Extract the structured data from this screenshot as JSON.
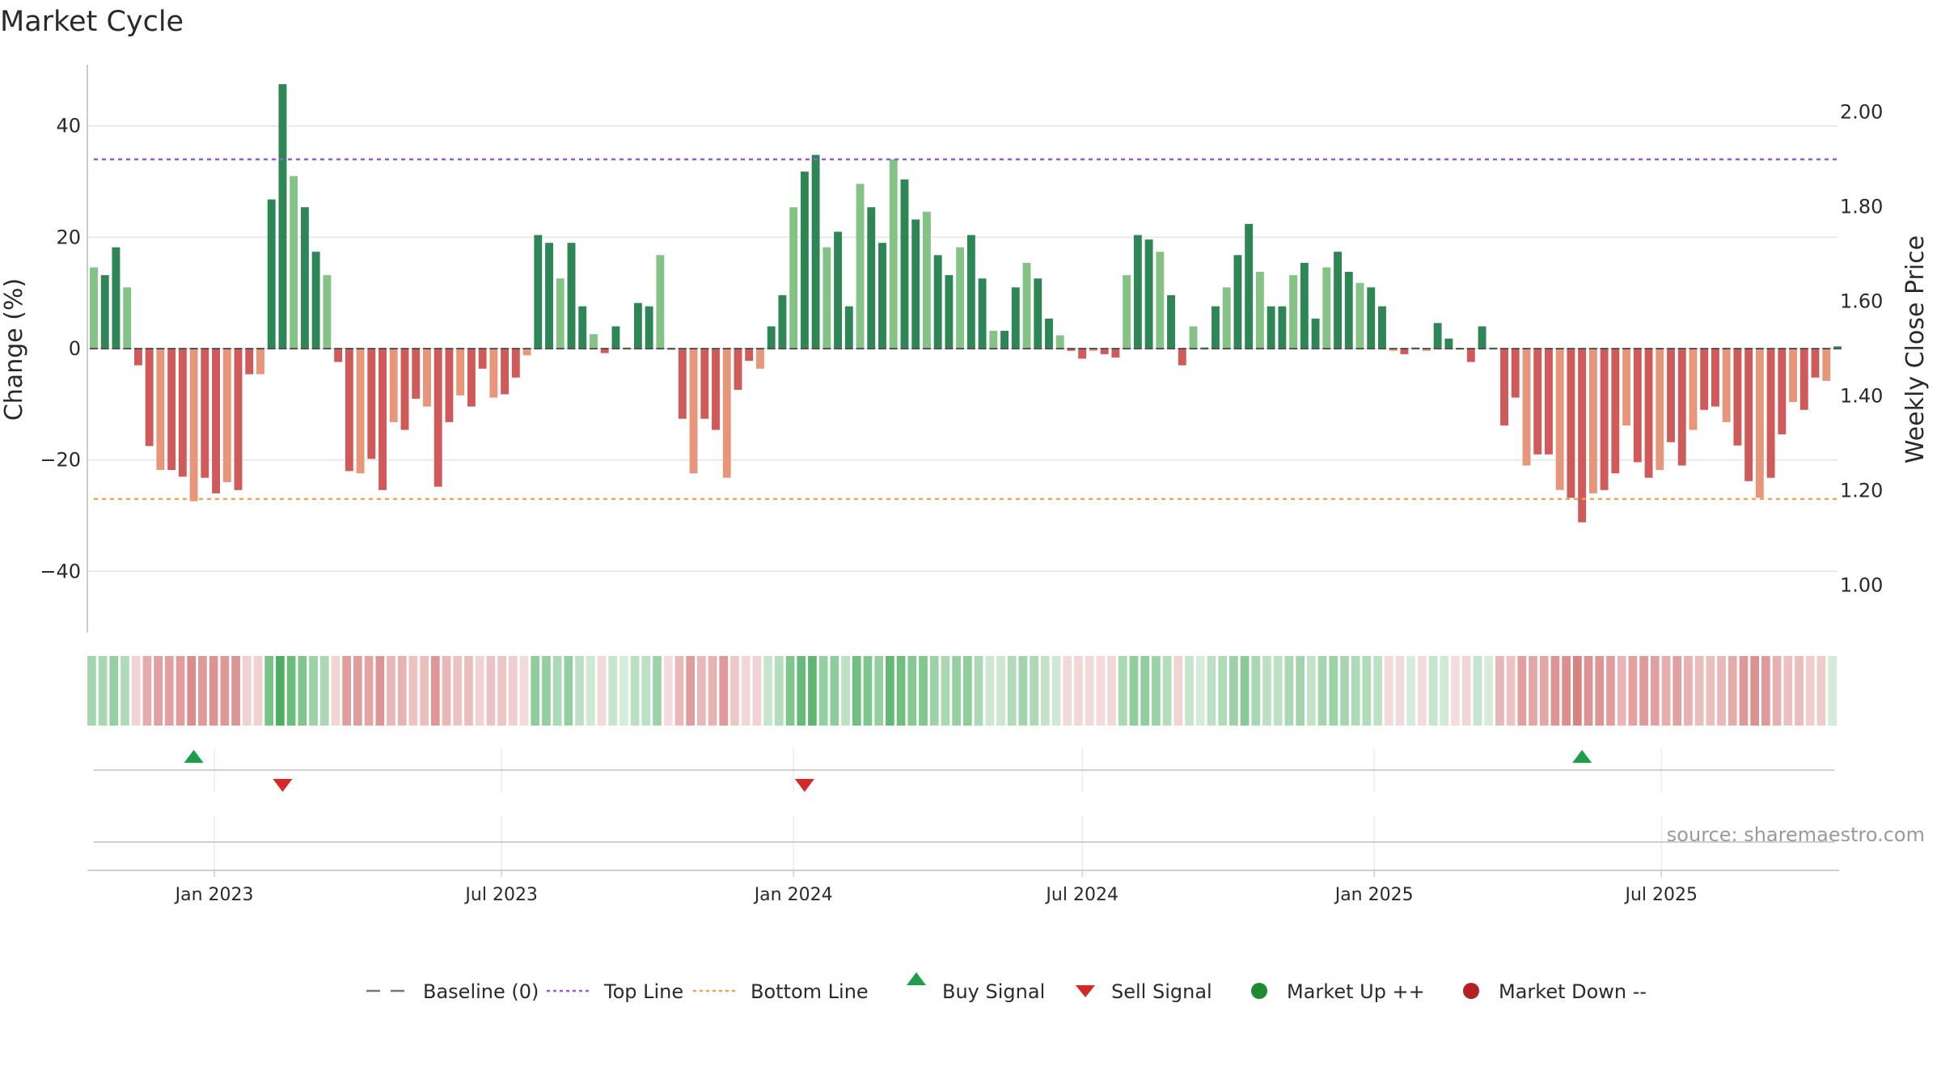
{
  "chart_data": {
    "type": "bar",
    "title": "Market Cycle",
    "ylabel": "Change (%)",
    "y2label": "Weekly Close Price",
    "ylim": [
      -51,
      51
    ],
    "y_ticks": [
      40,
      20,
      0,
      -20,
      -40
    ],
    "y_tick_labels": [
      "40",
      "20",
      "0",
      "−20",
      "−40"
    ],
    "y2lim": [
      0.9,
      2.1
    ],
    "y2_ticks": [
      2.0,
      1.8,
      1.6,
      1.4,
      1.2,
      1.0
    ],
    "y2_tick_labels": [
      "2.00",
      "1.80",
      "1.60",
      "1.40",
      "1.20",
      "1.00"
    ],
    "start_date": "2022-10-17",
    "end_date": "2025-10-20",
    "x_ticks": [
      {
        "date": "2023-01-01",
        "label": "Jan 2023"
      },
      {
        "date": "2023-07-01",
        "label": "Jul 2023"
      },
      {
        "date": "2024-01-01",
        "label": "Jan 2024"
      },
      {
        "date": "2024-07-01",
        "label": "Jul 2024"
      },
      {
        "date": "2025-01-01",
        "label": "Jan 2025"
      },
      {
        "date": "2025-07-01",
        "label": "Jul 2025"
      }
    ],
    "top_line": 34,
    "bottom_line": -27,
    "grid": true,
    "legend_position": "bottom",
    "weeks": [
      {
        "date": "2022-10-17",
        "value": 14.6
      },
      {
        "date": "2022-10-24",
        "value": 13.2
      },
      {
        "date": "2022-10-31",
        "value": 18.2
      },
      {
        "date": "2022-11-07",
        "value": 11.0
      },
      {
        "date": "2022-11-14",
        "value": -3.0
      },
      {
        "date": "2022-11-21",
        "value": -17.5
      },
      {
        "date": "2022-11-28",
        "value": -21.8
      },
      {
        "date": "2022-12-05",
        "value": -21.8
      },
      {
        "date": "2022-12-12",
        "value": -23.0
      },
      {
        "date": "2022-12-19",
        "value": -27.4
      },
      {
        "date": "2022-12-26",
        "value": -23.2
      },
      {
        "date": "2023-01-02",
        "value": -26.0
      },
      {
        "date": "2023-01-09",
        "value": -24.0
      },
      {
        "date": "2023-01-16",
        "value": -25.4
      },
      {
        "date": "2023-01-23",
        "value": -4.6
      },
      {
        "date": "2023-01-30",
        "value": -4.6
      },
      {
        "date": "2023-02-06",
        "value": 26.8
      },
      {
        "date": "2023-02-13",
        "value": 47.5
      },
      {
        "date": "2023-02-20",
        "value": 31.0
      },
      {
        "date": "2023-02-27",
        "value": 25.4
      },
      {
        "date": "2023-03-06",
        "value": 17.4
      },
      {
        "date": "2023-03-13",
        "value": 13.2
      },
      {
        "date": "2023-03-20",
        "value": -2.4
      },
      {
        "date": "2023-03-27",
        "value": -22.0
      },
      {
        "date": "2023-04-03",
        "value": -22.4
      },
      {
        "date": "2023-04-10",
        "value": -19.8
      },
      {
        "date": "2023-04-17",
        "value": -25.4
      },
      {
        "date": "2023-04-24",
        "value": -13.2
      },
      {
        "date": "2023-05-01",
        "value": -14.6
      },
      {
        "date": "2023-05-08",
        "value": -9.0
      },
      {
        "date": "2023-05-15",
        "value": -10.4
      },
      {
        "date": "2023-05-22",
        "value": -24.8
      },
      {
        "date": "2023-05-29",
        "value": -13.2
      },
      {
        "date": "2023-06-05",
        "value": -8.4
      },
      {
        "date": "2023-06-12",
        "value": -10.4
      },
      {
        "date": "2023-06-19",
        "value": -3.6
      },
      {
        "date": "2023-06-26",
        "value": -8.8
      },
      {
        "date": "2023-07-03",
        "value": -8.2
      },
      {
        "date": "2023-07-10",
        "value": -5.2
      },
      {
        "date": "2023-07-17",
        "value": -1.2
      },
      {
        "date": "2023-07-24",
        "value": 20.4
      },
      {
        "date": "2023-07-31",
        "value": 19.0
      },
      {
        "date": "2023-08-07",
        "value": 12.6
      },
      {
        "date": "2023-08-14",
        "value": 19.0
      },
      {
        "date": "2023-08-21",
        "value": 7.6
      },
      {
        "date": "2023-08-28",
        "value": 2.6
      },
      {
        "date": "2023-09-04",
        "value": -0.8
      },
      {
        "date": "2023-09-11",
        "value": 4.0
      },
      {
        "date": "2023-09-18",
        "value": 0.2
      },
      {
        "date": "2023-09-25",
        "value": 8.2
      },
      {
        "date": "2023-10-02",
        "value": 7.6
      },
      {
        "date": "2023-10-09",
        "value": 16.8
      },
      {
        "date": "2023-10-16",
        "value": -0.2
      },
      {
        "date": "2023-10-23",
        "value": -12.6
      },
      {
        "date": "2023-10-30",
        "value": -22.4
      },
      {
        "date": "2023-11-06",
        "value": -12.6
      },
      {
        "date": "2023-11-13",
        "value": -14.6
      },
      {
        "date": "2023-11-20",
        "value": -23.2
      },
      {
        "date": "2023-11-27",
        "value": -7.4
      },
      {
        "date": "2023-12-04",
        "value": -2.2
      },
      {
        "date": "2023-12-11",
        "value": -3.6
      },
      {
        "date": "2023-12-18",
        "value": 4.0
      },
      {
        "date": "2023-12-25",
        "value": 9.6
      },
      {
        "date": "2024-01-01",
        "value": 25.4
      },
      {
        "date": "2024-01-08",
        "value": 31.8
      },
      {
        "date": "2024-01-15",
        "value": 34.8
      },
      {
        "date": "2024-01-22",
        "value": 18.2
      },
      {
        "date": "2024-01-29",
        "value": 21.0
      },
      {
        "date": "2024-02-05",
        "value": 7.6
      },
      {
        "date": "2024-02-12",
        "value": 29.6
      },
      {
        "date": "2024-02-19",
        "value": 25.4
      },
      {
        "date": "2024-02-26",
        "value": 19.0
      },
      {
        "date": "2024-03-04",
        "value": 34.0
      },
      {
        "date": "2024-03-11",
        "value": 30.4
      },
      {
        "date": "2024-03-18",
        "value": 23.2
      },
      {
        "date": "2024-03-25",
        "value": 24.6
      },
      {
        "date": "2024-04-01",
        "value": 16.8
      },
      {
        "date": "2024-04-08",
        "value": 13.2
      },
      {
        "date": "2024-04-15",
        "value": 18.2
      },
      {
        "date": "2024-04-22",
        "value": 20.4
      },
      {
        "date": "2024-04-29",
        "value": 12.6
      },
      {
        "date": "2024-05-06",
        "value": 3.2
      },
      {
        "date": "2024-05-13",
        "value": 3.2
      },
      {
        "date": "2024-05-20",
        "value": 11.0
      },
      {
        "date": "2024-05-27",
        "value": 15.4
      },
      {
        "date": "2024-06-03",
        "value": 12.6
      },
      {
        "date": "2024-06-10",
        "value": 5.4
      },
      {
        "date": "2024-06-17",
        "value": 2.4
      },
      {
        "date": "2024-06-24",
        "value": -0.4
      },
      {
        "date": "2024-07-01",
        "value": -1.8
      },
      {
        "date": "2024-07-08",
        "value": -0.4
      },
      {
        "date": "2024-07-15",
        "value": -1.0
      },
      {
        "date": "2024-07-22",
        "value": -1.6
      },
      {
        "date": "2024-07-29",
        "value": 13.2
      },
      {
        "date": "2024-08-05",
        "value": 20.4
      },
      {
        "date": "2024-08-12",
        "value": 19.6
      },
      {
        "date": "2024-08-19",
        "value": 17.4
      },
      {
        "date": "2024-08-26",
        "value": 9.6
      },
      {
        "date": "2024-09-02",
        "value": -3.0
      },
      {
        "date": "2024-09-09",
        "value": 4.0
      },
      {
        "date": "2024-09-16",
        "value": 0.2
      },
      {
        "date": "2024-09-23",
        "value": 7.6
      },
      {
        "date": "2024-09-30",
        "value": 11.0
      },
      {
        "date": "2024-10-07",
        "value": 16.8
      },
      {
        "date": "2024-10-14",
        "value": 22.4
      },
      {
        "date": "2024-10-21",
        "value": 13.8
      },
      {
        "date": "2024-10-28",
        "value": 7.6
      },
      {
        "date": "2024-11-04",
        "value": 7.6
      },
      {
        "date": "2024-11-11",
        "value": 13.2
      },
      {
        "date": "2024-11-18",
        "value": 15.4
      },
      {
        "date": "2024-11-25",
        "value": 5.4
      },
      {
        "date": "2024-12-02",
        "value": 14.6
      },
      {
        "date": "2024-12-09",
        "value": 17.4
      },
      {
        "date": "2024-12-16",
        "value": 13.8
      },
      {
        "date": "2024-12-23",
        "value": 11.8
      },
      {
        "date": "2024-12-30",
        "value": 11.0
      },
      {
        "date": "2025-01-06",
        "value": 7.6
      },
      {
        "date": "2025-01-13",
        "value": -0.4
      },
      {
        "date": "2025-01-20",
        "value": -1.0
      },
      {
        "date": "2025-01-27",
        "value": 0.2
      },
      {
        "date": "2025-02-03",
        "value": -0.4
      },
      {
        "date": "2025-02-10",
        "value": 4.6
      },
      {
        "date": "2025-02-17",
        "value": 1.8
      },
      {
        "date": "2025-02-24",
        "value": -0.2
      },
      {
        "date": "2025-03-03",
        "value": -2.4
      },
      {
        "date": "2025-03-10",
        "value": 4.0
      },
      {
        "date": "2025-03-17",
        "value": 0.2
      },
      {
        "date": "2025-03-24",
        "value": -13.8
      },
      {
        "date": "2025-03-31",
        "value": -8.8
      },
      {
        "date": "2025-04-07",
        "value": -21.0
      },
      {
        "date": "2025-04-14",
        "value": -19.0
      },
      {
        "date": "2025-04-21",
        "value": -19.0
      },
      {
        "date": "2025-04-28",
        "value": -25.4
      },
      {
        "date": "2025-05-05",
        "value": -26.8
      },
      {
        "date": "2025-05-12",
        "value": -31.2
      },
      {
        "date": "2025-05-19",
        "value": -26.0
      },
      {
        "date": "2025-05-26",
        "value": -25.4
      },
      {
        "date": "2025-06-02",
        "value": -22.4
      },
      {
        "date": "2025-06-09",
        "value": -13.8
      },
      {
        "date": "2025-06-16",
        "value": -20.4
      },
      {
        "date": "2025-06-23",
        "value": -23.2
      },
      {
        "date": "2025-06-30",
        "value": -21.8
      },
      {
        "date": "2025-07-07",
        "value": -16.8
      },
      {
        "date": "2025-07-14",
        "value": -21.0
      },
      {
        "date": "2025-07-21",
        "value": -14.6
      },
      {
        "date": "2025-07-28",
        "value": -11.0
      },
      {
        "date": "2025-08-04",
        "value": -10.4
      },
      {
        "date": "2025-08-11",
        "value": -13.2
      },
      {
        "date": "2025-08-18",
        "value": -17.4
      },
      {
        "date": "2025-08-25",
        "value": -23.8
      },
      {
        "date": "2025-09-01",
        "value": -26.8
      },
      {
        "date": "2025-09-08",
        "value": -23.2
      },
      {
        "date": "2025-09-15",
        "value": -15.4
      },
      {
        "date": "2025-09-22",
        "value": -9.6
      },
      {
        "date": "2025-09-29",
        "value": -11.0
      },
      {
        "date": "2025-10-06",
        "value": -5.2
      },
      {
        "date": "2025-10-13",
        "value": -5.8
      },
      {
        "date": "2025-10-20",
        "value": 0.4
      }
    ],
    "buy_signals": [
      "2022-12-19",
      "2025-05-12"
    ],
    "sell_signals": [
      "2023-02-13",
      "2024-01-08"
    ]
  },
  "legend": {
    "items": [
      {
        "label": "Baseline (0)",
        "symbol": "dash",
        "color": "#777777"
      },
      {
        "label": "Top Line",
        "symbol": "dot",
        "color": "#9b59d6"
      },
      {
        "label": "Bottom Line",
        "symbol": "dot",
        "color": "#f0a050"
      },
      {
        "label": "Buy Signal",
        "symbol": "triangle-up",
        "color": "#1e9e4a"
      },
      {
        "label": "Sell Signal",
        "symbol": "triangle-down",
        "color": "#d62828"
      },
      {
        "label": "Market Up ++",
        "symbol": "circle",
        "color": "#1e8c2e"
      },
      {
        "label": "Market Down --",
        "symbol": "circle",
        "color": "#b32222"
      }
    ]
  },
  "source": "source: sharemaestro.com",
  "colors": {
    "up_strong": "#2e8555",
    "up_light": "#85c285",
    "down_strong": "#d05a5a",
    "down_light": "#e8967a",
    "top_line": "#9b59d6",
    "bottom_line": "#f0a050",
    "buy": "#1e9e4a",
    "sell": "#d62828"
  }
}
